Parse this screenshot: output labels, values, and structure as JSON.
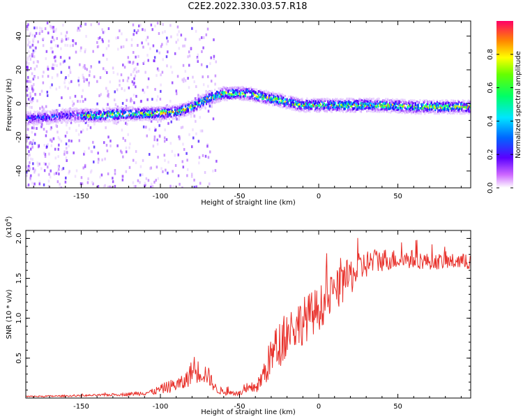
{
  "title": "C2E2.2022.330.03.57.R18",
  "chart_data": [
    {
      "type": "heatmap",
      "name": "spectrogram",
      "xlabel": "Height of straight line (km)",
      "ylabel": "Frequency (Hz)",
      "xlim": [
        -185,
        96
      ],
      "ylim": [
        -50,
        49
      ],
      "xticks": [
        -150,
        -100,
        -50,
        0,
        50
      ],
      "yticks": [
        -40,
        -20,
        0,
        20,
        40
      ],
      "colorbar": {
        "label": "Normalized spectral amplitude",
        "range": [
          0.0,
          1.0
        ],
        "ticks": [
          0.0,
          0.2,
          0.4,
          0.6,
          0.8
        ],
        "tick_labels": [
          "0.0",
          "0.2",
          "0.4",
          "0.6",
          "0.8"
        ]
      },
      "ridge": {
        "x": [
          -185,
          -170,
          -160,
          -140,
          -120,
          -105,
          -90,
          -80,
          -70,
          -60,
          -50,
          -45,
          -40,
          -35,
          -30,
          -20,
          -10,
          0,
          20,
          40,
          60,
          80,
          96
        ],
        "frequency": [
          -9,
          -8,
          -7,
          -7,
          -6,
          -6,
          -5,
          -2,
          3,
          6,
          6,
          6,
          5,
          4,
          3,
          1,
          -1,
          -1,
          -1,
          -1,
          -2,
          -2,
          -2
        ]
      }
    },
    {
      "type": "line",
      "name": "snr",
      "xlabel": "Height of straight line (km)",
      "ylabel": "SNR (10 * v/v)",
      "exponent_label": "(x10",
      "exponent_power": "4",
      "exponent_close": ")",
      "xlim": [
        -185,
        96
      ],
      "ylim": [
        0,
        2.1
      ],
      "xticks": [
        -150,
        -100,
        -50,
        0,
        50
      ],
      "yticks": [
        0.5,
        1.0,
        1.5,
        2.0
      ],
      "ytick_labels": [
        "0.5",
        "1.0",
        "1.5",
        "2.0"
      ],
      "color": "#e8302a",
      "series_envelope": {
        "x": [
          -185,
          -150,
          -120,
          -105,
          -95,
          -85,
          -80,
          -75,
          -70,
          -65,
          -60,
          -50,
          -45,
          -38,
          -35,
          -30,
          -25,
          -20,
          -10,
          0,
          10,
          20,
          30,
          40,
          50,
          60,
          70,
          80,
          90,
          96
        ],
        "mean": [
          0.02,
          0.03,
          0.05,
          0.08,
          0.15,
          0.2,
          0.35,
          0.35,
          0.3,
          0.12,
          0.08,
          0.06,
          0.1,
          0.18,
          0.3,
          0.55,
          0.7,
          0.85,
          1.0,
          1.15,
          1.35,
          1.55,
          1.7,
          1.75,
          1.75,
          1.75,
          1.72,
          1.72,
          1.72,
          1.72
        ],
        "spread": [
          0.01,
          0.01,
          0.02,
          0.04,
          0.08,
          0.1,
          0.15,
          0.15,
          0.12,
          0.06,
          0.04,
          0.03,
          0.06,
          0.1,
          0.18,
          0.25,
          0.3,
          0.3,
          0.3,
          0.28,
          0.26,
          0.24,
          0.18,
          0.15,
          0.12,
          0.12,
          0.1,
          0.1,
          0.1,
          0.1
        ]
      }
    }
  ],
  "tick_text": {
    "x": [
      "-150",
      "-100",
      "-50",
      "0",
      "50"
    ],
    "y_top": [
      "-40",
      "-20",
      "0",
      "20",
      "40"
    ]
  }
}
